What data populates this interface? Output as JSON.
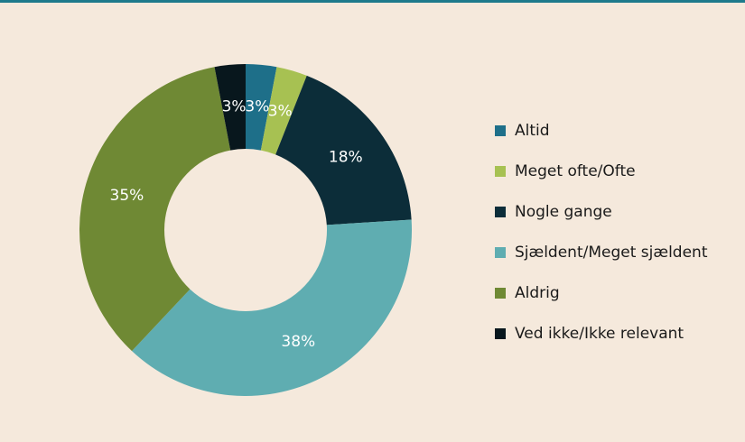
{
  "chart_data": {
    "type": "donut",
    "categories": [
      "Altid",
      "Meget ofte/Ofte",
      "Nogle gange",
      "Sjældent/Meget sjældent",
      "Aldrig",
      "Ved ikke/Ikke relevant"
    ],
    "values": [
      3,
      3,
      18,
      38,
      35,
      3
    ],
    "value_labels": [
      "3%",
      "3%",
      "18%",
      "38%",
      "35%",
      "3%"
    ],
    "colors": [
      "#1e6f89",
      "#a7c152",
      "#0c2d39",
      "#5fadb1",
      "#6f8934",
      "#08171d"
    ],
    "legend": "right"
  }
}
